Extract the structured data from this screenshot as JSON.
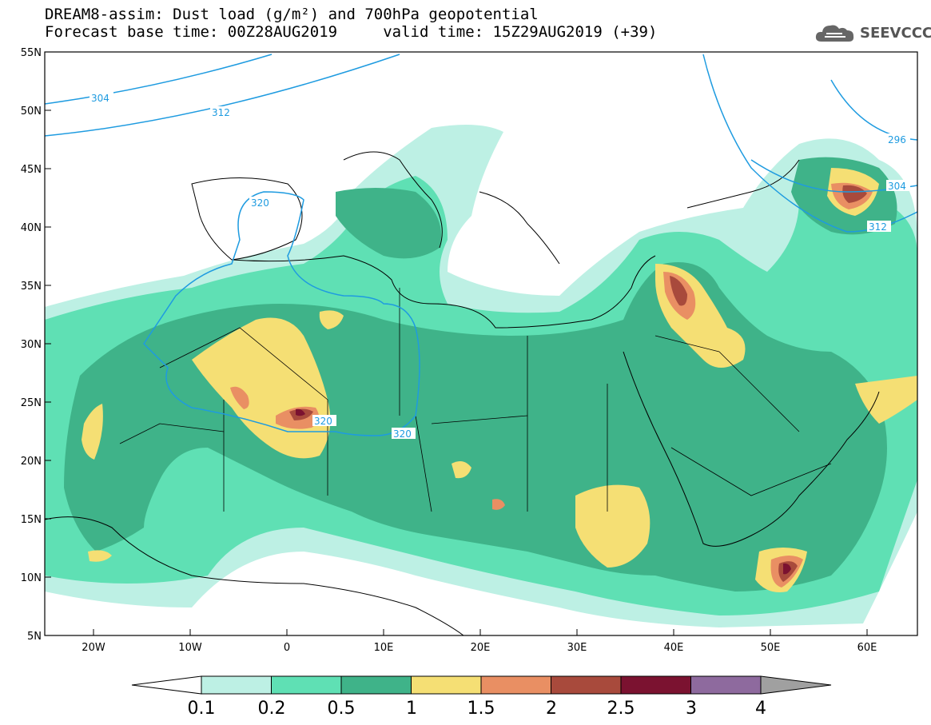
{
  "title": {
    "line1": "DREAM8-assim: Dust load (g/m²) and 700hPa geopotential",
    "line2": "Forecast base time: 00Z28AUG2019     valid time: 15Z29AUG2019 (+39)"
  },
  "logo": {
    "text": "SEEVCCC",
    "icon": "cloud-icon"
  },
  "map": {
    "lat_labels": [
      "55N",
      "50N",
      "45N",
      "40N",
      "35N",
      "30N",
      "25N",
      "20N",
      "15N",
      "10N",
      "5N"
    ],
    "lon_labels": [
      "20W",
      "10W",
      "0",
      "10E",
      "20E",
      "30E",
      "40E",
      "50E",
      "60E"
    ],
    "contour_labels": [
      "304",
      "312",
      "320",
      "320",
      "320",
      "296",
      "304",
      "312"
    ]
  },
  "colorbar": {
    "labels": [
      "0.1",
      "0.2",
      "0.5",
      "1",
      "1.5",
      "2",
      "2.5",
      "3",
      "4"
    ],
    "colors": [
      "#bdf0e4",
      "#5fe0b4",
      "#3fb389",
      "#f5df74",
      "#e98f63",
      "#a84a3c",
      "#7b1230",
      "#8e6a9e",
      "#a0a0a0"
    ]
  },
  "colors": {
    "ocean": "#ffffff",
    "land": "#ffffff",
    "border": "#000000",
    "contour": "#1e9be0"
  }
}
